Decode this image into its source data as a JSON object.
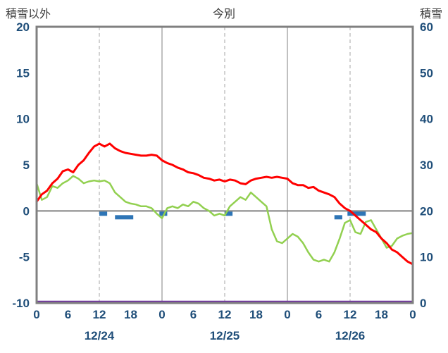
{
  "header": {
    "left_label": "積雪以外",
    "title": "今別",
    "right_label": "積雪"
  },
  "chart_data": {
    "type": "line",
    "title": "今別",
    "left_axis_label": "積雪以外",
    "right_axis_label": "積雪",
    "hours_total": 72,
    "left_axis": {
      "min": -10,
      "max": 20,
      "ticks": [
        20,
        15,
        10,
        5,
        0,
        -5,
        -10
      ]
    },
    "right_axis": {
      "min": 0,
      "max": 60,
      "ticks": [
        60,
        50,
        40,
        30,
        20,
        10,
        0
      ]
    },
    "x_tick_interval": 6,
    "x_tick_labels": [
      "0",
      "6",
      "12",
      "18",
      "0",
      "6",
      "12",
      "18",
      "0",
      "6",
      "12",
      "18",
      "0"
    ],
    "day_labels": [
      "12/24",
      "12/25",
      "12/26"
    ],
    "grid_on": true,
    "colors": {
      "red_series": "#ff0000",
      "green_series": "#92d050",
      "blue_bars": "#2e75b6",
      "purple_baseline": "#7030a0",
      "axis_text": "#1f4e79",
      "frame": "#808080",
      "dashed_grid": "#a6a6a6"
    },
    "series": [
      {
        "name": "temperature-red",
        "color_key": "red_series",
        "width": 3,
        "values": [
          1.0,
          1.8,
          2.2,
          3.0,
          3.5,
          4.3,
          4.5,
          4.2,
          5.0,
          5.5,
          6.3,
          7.0,
          7.3,
          7.0,
          7.3,
          6.8,
          6.5,
          6.3,
          6.2,
          6.1,
          6.0,
          6.0,
          6.1,
          6.0,
          5.5,
          5.2,
          5.0,
          4.7,
          4.5,
          4.2,
          4.1,
          3.9,
          3.6,
          3.5,
          3.3,
          3.4,
          3.2,
          3.4,
          3.3,
          3.0,
          2.9,
          3.3,
          3.5,
          3.6,
          3.7,
          3.6,
          3.7,
          3.6,
          3.5,
          3.0,
          2.8,
          2.8,
          2.5,
          2.6,
          2.2,
          2.0,
          1.8,
          1.5,
          0.8,
          0.3,
          0.0,
          -0.5,
          -1.0,
          -1.5,
          -2.0,
          -2.3,
          -3.0,
          -3.5,
          -4.2,
          -4.5,
          -5.0,
          -5.5,
          -5.8
        ]
      },
      {
        "name": "secondary-green",
        "color_key": "green_series",
        "width": 2.5,
        "values": [
          3.0,
          1.2,
          1.5,
          2.7,
          2.5,
          3.0,
          3.3,
          3.8,
          3.5,
          3.0,
          3.2,
          3.3,
          3.2,
          3.3,
          3.0,
          2.0,
          1.5,
          1.0,
          0.8,
          0.7,
          0.5,
          0.5,
          0.3,
          -0.3,
          -0.8,
          0.3,
          0.5,
          0.3,
          0.7,
          0.5,
          1.0,
          0.8,
          0.3,
          0.0,
          -0.5,
          -0.3,
          -0.5,
          0.5,
          1.0,
          1.5,
          1.2,
          2.0,
          1.5,
          1.0,
          0.5,
          -2.0,
          -3.3,
          -3.5,
          -3.0,
          -2.5,
          -2.8,
          -3.5,
          -4.5,
          -5.3,
          -5.5,
          -5.3,
          -5.5,
          -4.5,
          -3.0,
          -1.3,
          -1.0,
          -2.3,
          -2.5,
          -1.2,
          -1.0,
          -2.0,
          -3.0,
          -4.0,
          -3.8,
          -3.0,
          -2.7,
          -2.5,
          -2.4
        ]
      }
    ],
    "blue_bar_segments": [
      {
        "start": 12,
        "end": 13.5,
        "level": 0
      },
      {
        "start": 15,
        "end": 18.5,
        "level": 1
      },
      {
        "start": 23.5,
        "end": 25,
        "level": 0
      },
      {
        "start": 36,
        "end": 37.5,
        "level": 0
      },
      {
        "start": 57,
        "end": 58.5,
        "level": 1
      },
      {
        "start": 59.5,
        "end": 63,
        "level": 0
      }
    ],
    "purple_baseline_value_left_axis": -10
  }
}
